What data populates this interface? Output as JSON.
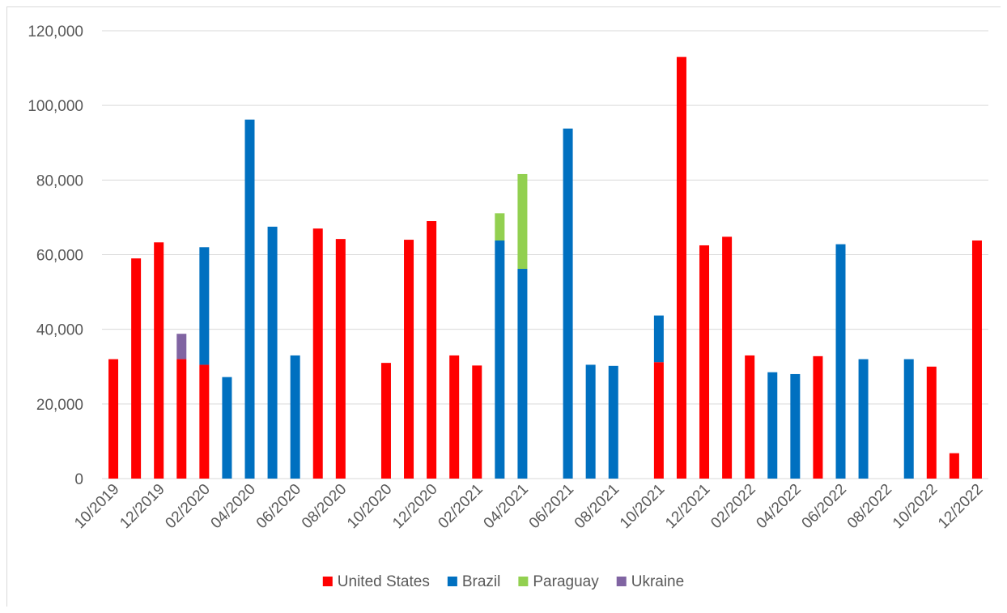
{
  "chart_data": {
    "type": "bar",
    "stacked": true,
    "title": "",
    "xlabel": "",
    "ylabel": "",
    "ylim": [
      0,
      120000
    ],
    "yticks": [
      0,
      20000,
      40000,
      60000,
      80000,
      100000,
      120000
    ],
    "ytick_labels": [
      "0",
      "20,000",
      "40,000",
      "60,000",
      "80,000",
      "100,000",
      "120,000"
    ],
    "grid": "horizontal",
    "legend_position": "bottom",
    "categories": [
      "10/2019",
      "11/2019",
      "12/2019",
      "01/2020",
      "02/2020",
      "03/2020",
      "04/2020",
      "05/2020",
      "06/2020",
      "07/2020",
      "08/2020",
      "09/2020",
      "10/2020",
      "11/2020",
      "12/2020",
      "01/2021",
      "02/2021",
      "03/2021",
      "04/2021",
      "05/2021",
      "06/2021",
      "07/2021",
      "08/2021",
      "09/2021",
      "10/2021",
      "11/2021",
      "12/2021",
      "01/2022",
      "02/2022",
      "03/2022",
      "04/2022",
      "05/2022",
      "06/2022",
      "07/2022",
      "08/2022",
      "09/2022",
      "10/2022",
      "11/2022",
      "12/2022"
    ],
    "xtick_labels": [
      "10/2019",
      "12/2019",
      "02/2020",
      "04/2020",
      "06/2020",
      "08/2020",
      "10/2020",
      "12/2020",
      "02/2021",
      "04/2021",
      "06/2021",
      "08/2021",
      "10/2021",
      "12/2021",
      "02/2022",
      "04/2022",
      "06/2022",
      "08/2022",
      "10/2022",
      "12/2022"
    ],
    "series": [
      {
        "name": "United States",
        "color": "#ff0000",
        "values": [
          32000,
          59000,
          63300,
          32000,
          30500,
          0,
          0,
          0,
          0,
          67000,
          64200,
          0,
          31000,
          64000,
          69000,
          33000,
          30300,
          0,
          0,
          0,
          0,
          0,
          0,
          0,
          31200,
          113000,
          62500,
          64800,
          33000,
          0,
          0,
          32800,
          0,
          0,
          0,
          0,
          30000,
          6800,
          63800
        ]
      },
      {
        "name": "Brazil",
        "color": "#0070c0",
        "values": [
          0,
          0,
          0,
          0,
          31500,
          27200,
          96200,
          67500,
          33000,
          0,
          0,
          0,
          0,
          0,
          0,
          0,
          0,
          63800,
          56200,
          0,
          93800,
          30500,
          30200,
          0,
          12500,
          0,
          0,
          0,
          0,
          28500,
          28000,
          0,
          62800,
          32000,
          0,
          32000,
          0,
          0,
          0
        ]
      },
      {
        "name": "Paraguay",
        "color": "#92d050",
        "values": [
          0,
          0,
          0,
          0,
          0,
          0,
          0,
          0,
          0,
          0,
          0,
          0,
          0,
          0,
          0,
          0,
          0,
          7300,
          25400,
          0,
          0,
          0,
          0,
          0,
          0,
          0,
          0,
          0,
          0,
          0,
          0,
          0,
          0,
          0,
          0,
          0,
          0,
          0,
          0
        ]
      },
      {
        "name": "Ukraine",
        "color": "#8064a2",
        "values": [
          0,
          0,
          0,
          6800,
          0,
          0,
          0,
          0,
          0,
          0,
          0,
          0,
          0,
          0,
          0,
          0,
          0,
          0,
          0,
          0,
          0,
          0,
          0,
          0,
          0,
          0,
          0,
          0,
          0,
          0,
          0,
          0,
          0,
          0,
          0,
          0,
          0,
          0,
          0
        ]
      }
    ]
  }
}
